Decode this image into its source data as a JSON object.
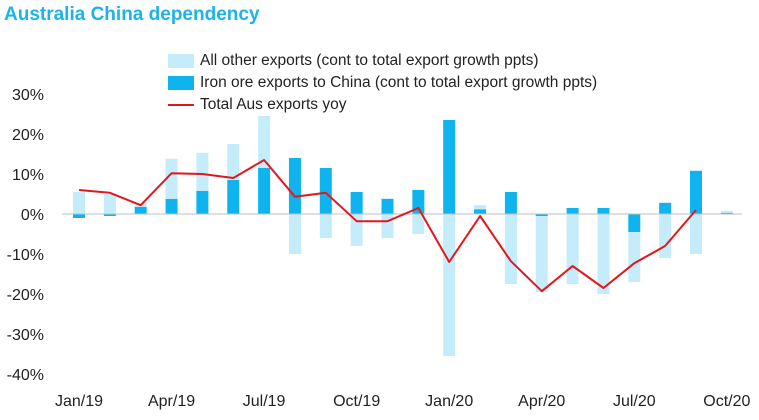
{
  "chart_data": {
    "type": "bar",
    "title": "Australia China dependency",
    "categories": [
      "Jan/19",
      "Feb/19",
      "Mar/19",
      "Apr/19",
      "May/19",
      "Jun/19",
      "Jul/19",
      "Aug/19",
      "Sep/19",
      "Oct/19",
      "Nov/19",
      "Dec/19",
      "Jan/20",
      "Feb/20",
      "Mar/20",
      "Apr/20",
      "May/20",
      "Jun/20",
      "Jul/20",
      "Aug/20",
      "Sep/20",
      "Oct/20"
    ],
    "x_tick_labels": [
      "Jan/19",
      "Apr/19",
      "Jul/19",
      "Oct/19",
      "Jan/20",
      "Apr/20",
      "Jul/20",
      "Oct/20"
    ],
    "y_tick_labels": [
      "30%",
      "20%",
      "10%",
      "0%",
      "-10%",
      "-20%",
      "-30%",
      "-40%"
    ],
    "ylim": [
      -40,
      30
    ],
    "series": [
      {
        "name": "All other exports (cont to total export growth ppts)",
        "kind": "bar",
        "color": "#c5ecfb",
        "values": [
          5.5,
          5.0,
          1.0,
          10.0,
          9.5,
          9.0,
          13.0,
          -10.0,
          -6.0,
          -8.0,
          -6.0,
          -5.0,
          -35.5,
          1.0,
          -17.5,
          -19.0,
          -17.5,
          -20.0,
          -12.5,
          -11.0,
          -10.0,
          0.5
        ]
      },
      {
        "name": "Iron ore exports to China (cont to total export growth ppts)",
        "kind": "bar",
        "color": "#0fb4ee",
        "values": [
          -1.0,
          -0.5,
          1.8,
          3.8,
          5.8,
          8.5,
          11.5,
          14.0,
          11.5,
          5.5,
          3.8,
          6.0,
          23.5,
          1.2,
          5.5,
          -0.5,
          1.5,
          1.5,
          -4.5,
          2.8,
          10.8,
          0.3
        ]
      },
      {
        "name": "Total Aus exports yoy",
        "kind": "line",
        "color": "#e3161b",
        "values": [
          6.0,
          5.3,
          2.2,
          10.2,
          10.0,
          9.0,
          13.5,
          4.3,
          5.3,
          -1.8,
          -1.8,
          1.5,
          -12.0,
          -0.5,
          -11.8,
          -19.3,
          -13.0,
          -18.5,
          -12.3,
          -8.0,
          1.0,
          null
        ]
      }
    ],
    "legend_position": "top",
    "grid": false
  }
}
